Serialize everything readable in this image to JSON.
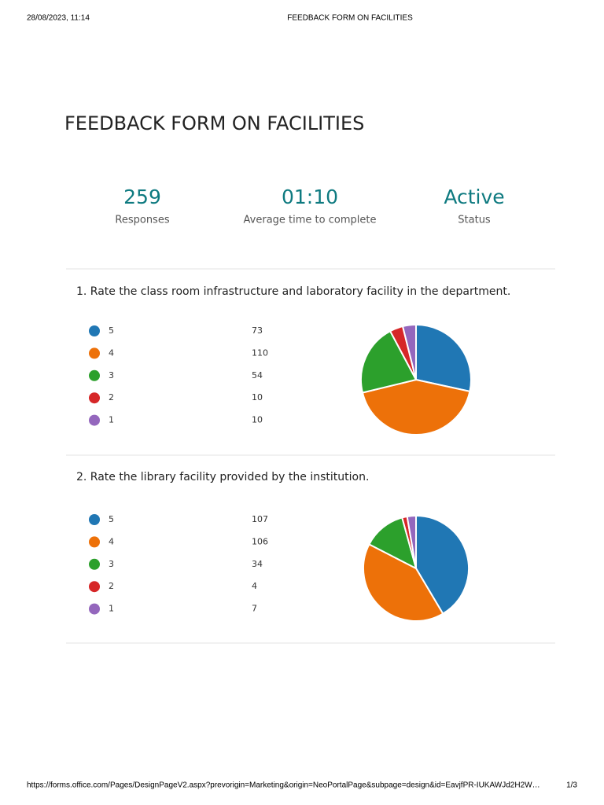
{
  "print_header": {
    "date": "28/08/2023, 11:14",
    "title": "FEEDBACK FORM ON FACILITIES"
  },
  "form_title": "FEEDBACK FORM ON FACILITIES",
  "stats": [
    {
      "value": 259,
      "label": "Responses"
    },
    {
      "value": "01:10",
      "label": "Average time to complete"
    },
    {
      "value": "Active",
      "label": "Status"
    }
  ],
  "chart_data": [
    {
      "type": "pie",
      "title": "1.  Rate the class room infrastructure and laboratory facility in the department.",
      "categories": [
        "5",
        "4",
        "3",
        "2",
        "1"
      ],
      "values": [
        73,
        110,
        54,
        10,
        10
      ],
      "colors": [
        "#2077b4",
        "#ed7109",
        "#2ca02c",
        "#d62728",
        "#9467bd"
      ]
    },
    {
      "type": "pie",
      "title": "2.  Rate the library facility provided by the institution.",
      "categories": [
        "5",
        "4",
        "3",
        "2",
        "1"
      ],
      "values": [
        107,
        106,
        34,
        4,
        7
      ],
      "colors": [
        "#2077b4",
        "#ed7109",
        "#2ca02c",
        "#d62728",
        "#9467bd"
      ]
    }
  ],
  "print_footer": {
    "url": "https://forms.office.com/Pages/DesignPageV2.aspx?prevorigin=Marketing&origin=NeoPortalPage&subpage=design&id=EavjfPR-IUKAWJd2H2W…",
    "page": "1/3"
  }
}
